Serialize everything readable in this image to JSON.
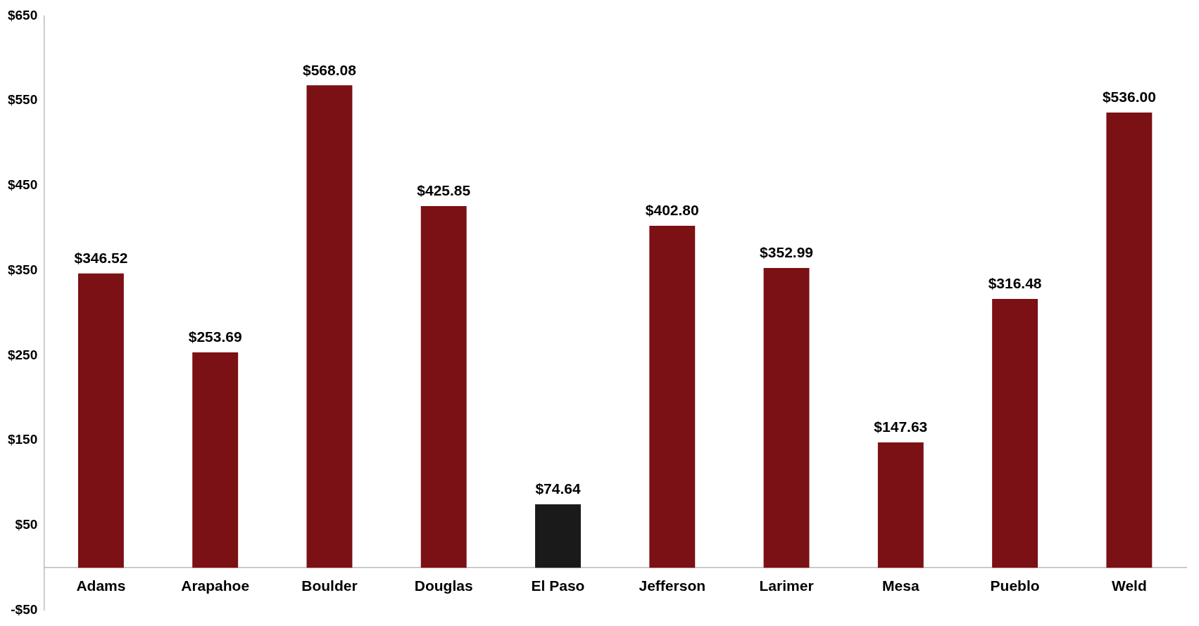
{
  "chart_data": {
    "type": "bar",
    "categories": [
      "Adams",
      "Arapahoe",
      "Boulder",
      "Douglas",
      "El Paso",
      "Jefferson",
      "Larimer",
      "Mesa",
      "Pueblo",
      "Weld"
    ],
    "values": [
      346.52,
      253.69,
      568.08,
      425.85,
      74.64,
      402.8,
      352.99,
      147.63,
      316.48,
      536.0
    ],
    "colors": [
      "#7b1015",
      "#7b1015",
      "#7b1015",
      "#7b1015",
      "#1a1a1a",
      "#7b1015",
      "#7b1015",
      "#7b1015",
      "#7b1015",
      "#7b1015"
    ],
    "value_labels": [
      "$346.52",
      "$253.69",
      "$568.08",
      "$425.85",
      "$74.64",
      "$402.80",
      "$352.99",
      "$147.63",
      "$316.48",
      "$536.00"
    ],
    "ylim": [
      -50,
      650
    ],
    "yticks": [
      {
        "value": -50,
        "label": "-$50"
      },
      {
        "value": 50,
        "label": "$50"
      },
      {
        "value": 150,
        "label": "$150"
      },
      {
        "value": 250,
        "label": "$250"
      },
      {
        "value": 350,
        "label": "$350"
      },
      {
        "value": 450,
        "label": "$450"
      },
      {
        "value": 550,
        "label": "$550"
      },
      {
        "value": 650,
        "label": "$650"
      }
    ],
    "grid": false,
    "legend": false
  }
}
